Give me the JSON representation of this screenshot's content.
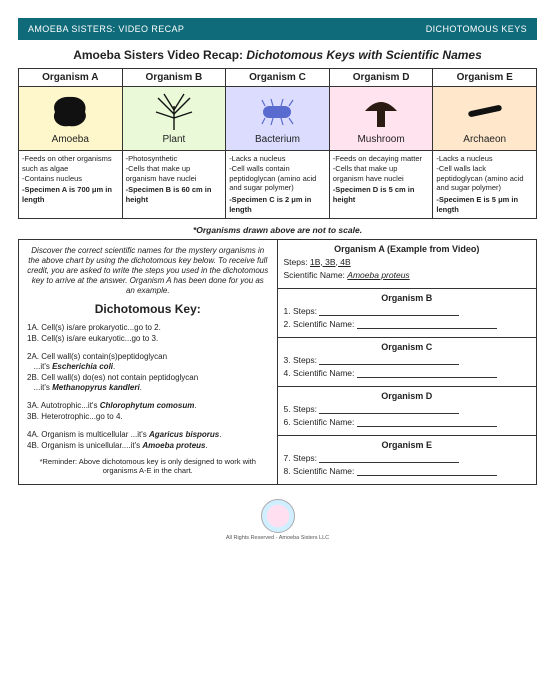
{
  "header": {
    "left": "AMOEBA SISTERS: VIDEO RECAP",
    "right": "DICHOTOMOUS KEYS"
  },
  "title": {
    "lead": "Amoeba Sisters Video Recap: ",
    "italic": "Dichotomous Keys with Scientific Names"
  },
  "organisms": {
    "headers": [
      "Organism A",
      "Organism B",
      "Organism C",
      "Organism D",
      "Organism E"
    ],
    "names": [
      "Amoeba",
      "Plant",
      "Bacterium",
      "Mushroom",
      "Archaeon"
    ],
    "traits": {
      "a": "-Feeds on other organisms such as algae<br>-Contains nucleus<br><b>-Specimen A is 700 μm in length</b>",
      "b": "-Photosynthetic<br>-Cells that make up organism have nuclei<br><b>-Specimen B is 60 cm in height</b>",
      "c": "-Lacks a nucleus<br>-Cell walls contain peptidoglycan (amino acid and sugar polymer)<br><b>-Specimen C is 2 μm in length</b>",
      "d": "-Feeds on decaying matter<br>-Cells that make up organism have nuclei<br><b>-Specimen D is 5 cm in height</b>",
      "e": "-Lacks a nucleus<br>-Cell walls lack peptidoglycan (amino acid and sugar polymer)<br><b>-Specimen E is 5 μm in length</b>"
    }
  },
  "scale_note": "*Organisms drawn above are not to scale.",
  "intro": "Discover the correct scientific names for the mystery organisms in the above chart by using the dichotomous key below. To receive full credit, you are asked to write the steps you used in the dichotomous key to arrive at the answer. Organism A has been done for you as an example.",
  "key_title": "Dichotomous Key:",
  "keys": {
    "k1a": "1A. Cell(s) is/are prokaryotic...go to 2.",
    "k1b": "1B. Cell(s) is/are eukaryotic...go to 3.",
    "k2a_pre": "2A. Cell wall(s) contain(s)peptidoglycan",
    "k2a_it": "Escherichia coli",
    "k2b_pre": "2B. Cell wall(s) do(es) not contain peptidoglycan",
    "k2b_it": "Methanopyrus kandleri",
    "k3a_pre": "3A. Autotrophic...it's ",
    "k3a_it": "Chlorophytum comosum",
    "k3b": "3B. Heterotrophic...go to 4.",
    "k4a_pre": "4A. Organism is multicellular ...it's ",
    "k4a_it": "Agaricus bisporus",
    "k4b_pre": "4B. Organism is unicellular....it's ",
    "k4b_it": "Amoeba proteus"
  },
  "reminder": "*Reminder: Above dichotomous key is only designed to work with organisms A-E in the chart.",
  "right": {
    "example": {
      "title": "Organism A (Example from Video)",
      "steps_label": "Steps:",
      "steps_val": "1B, 3B, 4B",
      "sci_label": "Scientific Name:",
      "sci_val": "Amoeba proteus"
    },
    "orgB": {
      "title": "Organism B",
      "steps": "1. Steps:",
      "sci": "2. Scientific Name:"
    },
    "orgC": {
      "title": "Organism C",
      "steps": "3. Steps:",
      "sci": "4. Scientific Name:"
    },
    "orgD": {
      "title": "Organism D",
      "steps": "5. Steps:",
      "sci": "6. Scientific Name:"
    },
    "orgE": {
      "title": "Organism E",
      "steps": "7. Steps:",
      "sci": "8. Scientific Name:"
    }
  },
  "footer": "All Rights Reserved - Amoeba Sisters LLC"
}
